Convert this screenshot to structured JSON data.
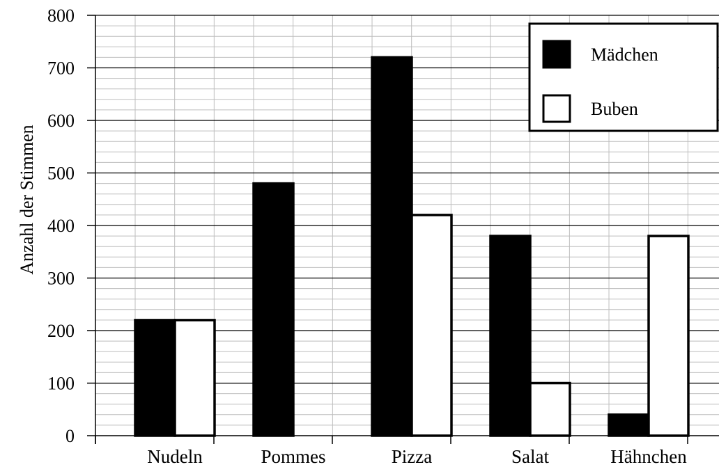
{
  "chart_data": {
    "type": "bar",
    "title": "",
    "xlabel": "",
    "ylabel": "Anzahl der Stimmen",
    "categories": [
      "Nudeln",
      "Pommes",
      "Pizza",
      "Salat",
      "Hähnchen"
    ],
    "series": [
      {
        "name": "Mädchen",
        "values": [
          220,
          480,
          720,
          380,
          40
        ],
        "fill": "#000000"
      },
      {
        "name": "Buben",
        "values": [
          220,
          0,
          420,
          100,
          380
        ],
        "fill": "#ffffff"
      }
    ],
    "ylim": [
      0,
      800
    ],
    "yticks": [
      0,
      100,
      200,
      300,
      400,
      500,
      600,
      700,
      800
    ],
    "ytick_labels": [
      "0",
      "100",
      "200",
      "300",
      "400",
      "500",
      "600",
      "700",
      "800"
    ],
    "minor_step": 20,
    "grid": true,
    "legend_position": "top-right",
    "colors": {
      "major_grid": "#000000",
      "minor_grid": "#bdbdbd",
      "bar_outline": "#000000"
    }
  }
}
